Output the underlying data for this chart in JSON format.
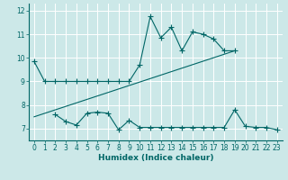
{
  "title": "",
  "xlabel": "Humidex (Indice chaleur)",
  "bg_color": "#cce8e8",
  "line_color": "#006666",
  "grid_color": "#ffffff",
  "xlim": [
    -0.5,
    23.5
  ],
  "ylim": [
    6.5,
    12.3
  ],
  "yticks": [
    7,
    8,
    9,
    10,
    11,
    12
  ],
  "xticks": [
    0,
    1,
    2,
    3,
    4,
    5,
    6,
    7,
    8,
    9,
    10,
    11,
    12,
    13,
    14,
    15,
    16,
    17,
    18,
    19,
    20,
    21,
    22,
    23
  ],
  "series1_x": [
    0,
    1,
    2,
    3,
    4,
    5,
    6,
    7,
    8,
    9,
    10,
    11,
    12,
    13,
    14,
    15,
    16,
    17,
    18,
    19
  ],
  "series1_y": [
    9.85,
    9.0,
    9.0,
    9.0,
    9.0,
    9.0,
    9.0,
    9.0,
    9.0,
    9.0,
    9.7,
    11.75,
    10.85,
    11.3,
    10.3,
    11.1,
    11.0,
    10.8,
    10.3,
    10.3
  ],
  "series2_x": [
    2,
    3,
    4,
    5,
    6,
    7,
    8,
    9,
    10,
    11,
    12,
    13,
    14,
    15,
    16,
    17,
    18,
    19,
    20,
    21,
    22,
    23
  ],
  "series2_y": [
    7.6,
    7.3,
    7.15,
    7.65,
    7.7,
    7.65,
    6.95,
    7.35,
    7.05,
    7.05,
    7.05,
    7.05,
    7.05,
    7.05,
    7.05,
    7.05,
    7.05,
    7.8,
    7.1,
    7.05,
    7.05,
    6.95
  ],
  "series3_x": [
    0,
    19
  ],
  "series3_y": [
    7.5,
    10.3
  ],
  "marker_size": 2.5,
  "tick_fontsize": 5.5,
  "label_fontsize": 6.5
}
